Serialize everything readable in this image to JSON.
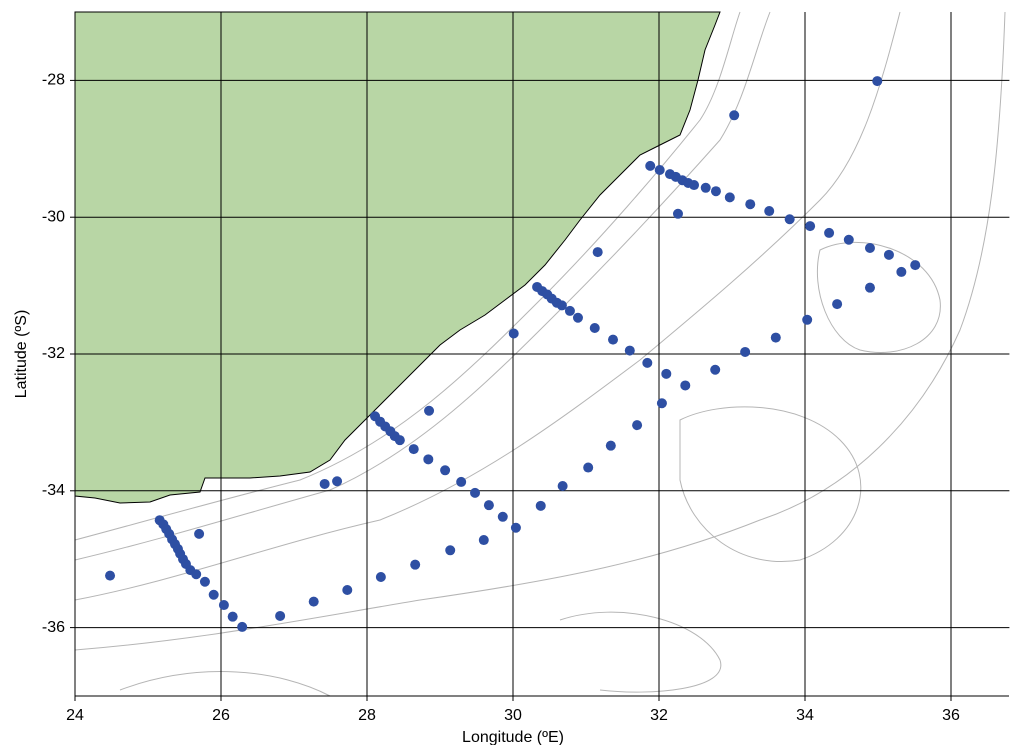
{
  "chart_data": {
    "type": "scatter",
    "xlabel": "Longitude (ºE)",
    "ylabel": "Latitude (ºS)",
    "xlim": [
      24,
      36.8
    ],
    "ylim": [
      -37,
      -27
    ],
    "xticks": [
      24,
      26,
      28,
      30,
      32,
      34,
      36
    ],
    "yticks": [
      -28,
      -30,
      -32,
      -34,
      -36
    ],
    "grid": true,
    "color": "#2e4fa3",
    "x": [
      31.88,
      32.01,
      32.15,
      32.23,
      32.32,
      32.4,
      32.48,
      32.64,
      32.78,
      32.97,
      33.25,
      33.51,
      33.79,
      34.07,
      34.33,
      34.6,
      34.89,
      35.15,
      35.32,
      35.51,
      32.26,
      31.16,
      33.03,
      34.99,
      34.89,
      34.44,
      34.03,
      33.6,
      33.18,
      32.77,
      32.36,
      32.1,
      32.04,
      31.7,
      31.34,
      31.03,
      30.68,
      30.38,
      30.04,
      30.33,
      30.4,
      30.47,
      30.53,
      30.6,
      30.67,
      30.78,
      30.89,
      31.12,
      31.37,
      31.6,
      31.84,
      30.01,
      28.11,
      28.18,
      28.25,
      28.32,
      28.38,
      28.45,
      28.64,
      28.84,
      29.07,
      29.29,
      29.48,
      29.67,
      29.86,
      28.85,
      27.42,
      27.59,
      25.16,
      25.21,
      25.25,
      25.29,
      25.33,
      25.37,
      25.41,
      25.44,
      25.48,
      25.52,
      25.58,
      25.66,
      25.78,
      25.9,
      26.04,
      26.16,
      26.29,
      26.81,
      27.27,
      27.73,
      28.19,
      28.66,
      29.14,
      29.6,
      25.7,
      24.48
    ],
    "values": [
      -29.25,
      -29.31,
      -29.37,
      -29.41,
      -29.46,
      -29.5,
      -29.53,
      -29.57,
      -29.62,
      -29.71,
      -29.81,
      -29.91,
      -30.03,
      -30.13,
      -30.23,
      -30.33,
      -30.45,
      -30.55,
      -30.8,
      -30.7,
      -29.95,
      -30.51,
      -28.51,
      -28.01,
      -31.03,
      -31.27,
      -31.5,
      -31.76,
      -31.97,
      -32.23,
      -32.46,
      -32.29,
      -32.72,
      -33.04,
      -33.34,
      -33.66,
      -33.93,
      -34.22,
      -34.54,
      -31.02,
      -31.08,
      -31.13,
      -31.19,
      -31.25,
      -31.29,
      -31.37,
      -31.47,
      -31.62,
      -31.79,
      -31.95,
      -32.13,
      -31.7,
      -32.91,
      -32.99,
      -33.06,
      -33.13,
      -33.2,
      -33.26,
      -33.39,
      -33.54,
      -33.7,
      -33.87,
      -34.03,
      -34.21,
      -34.38,
      -32.83,
      -33.9,
      -33.86,
      -34.43,
      -34.49,
      -34.56,
      -34.63,
      -34.71,
      -34.78,
      -34.85,
      -34.92,
      -35.0,
      -35.07,
      -35.16,
      -35.22,
      -35.33,
      -35.52,
      -35.67,
      -35.84,
      -35.99,
      -35.83,
      -35.62,
      -35.45,
      -35.26,
      -35.08,
      -34.87,
      -34.72,
      -34.63,
      -35.24
    ]
  }
}
